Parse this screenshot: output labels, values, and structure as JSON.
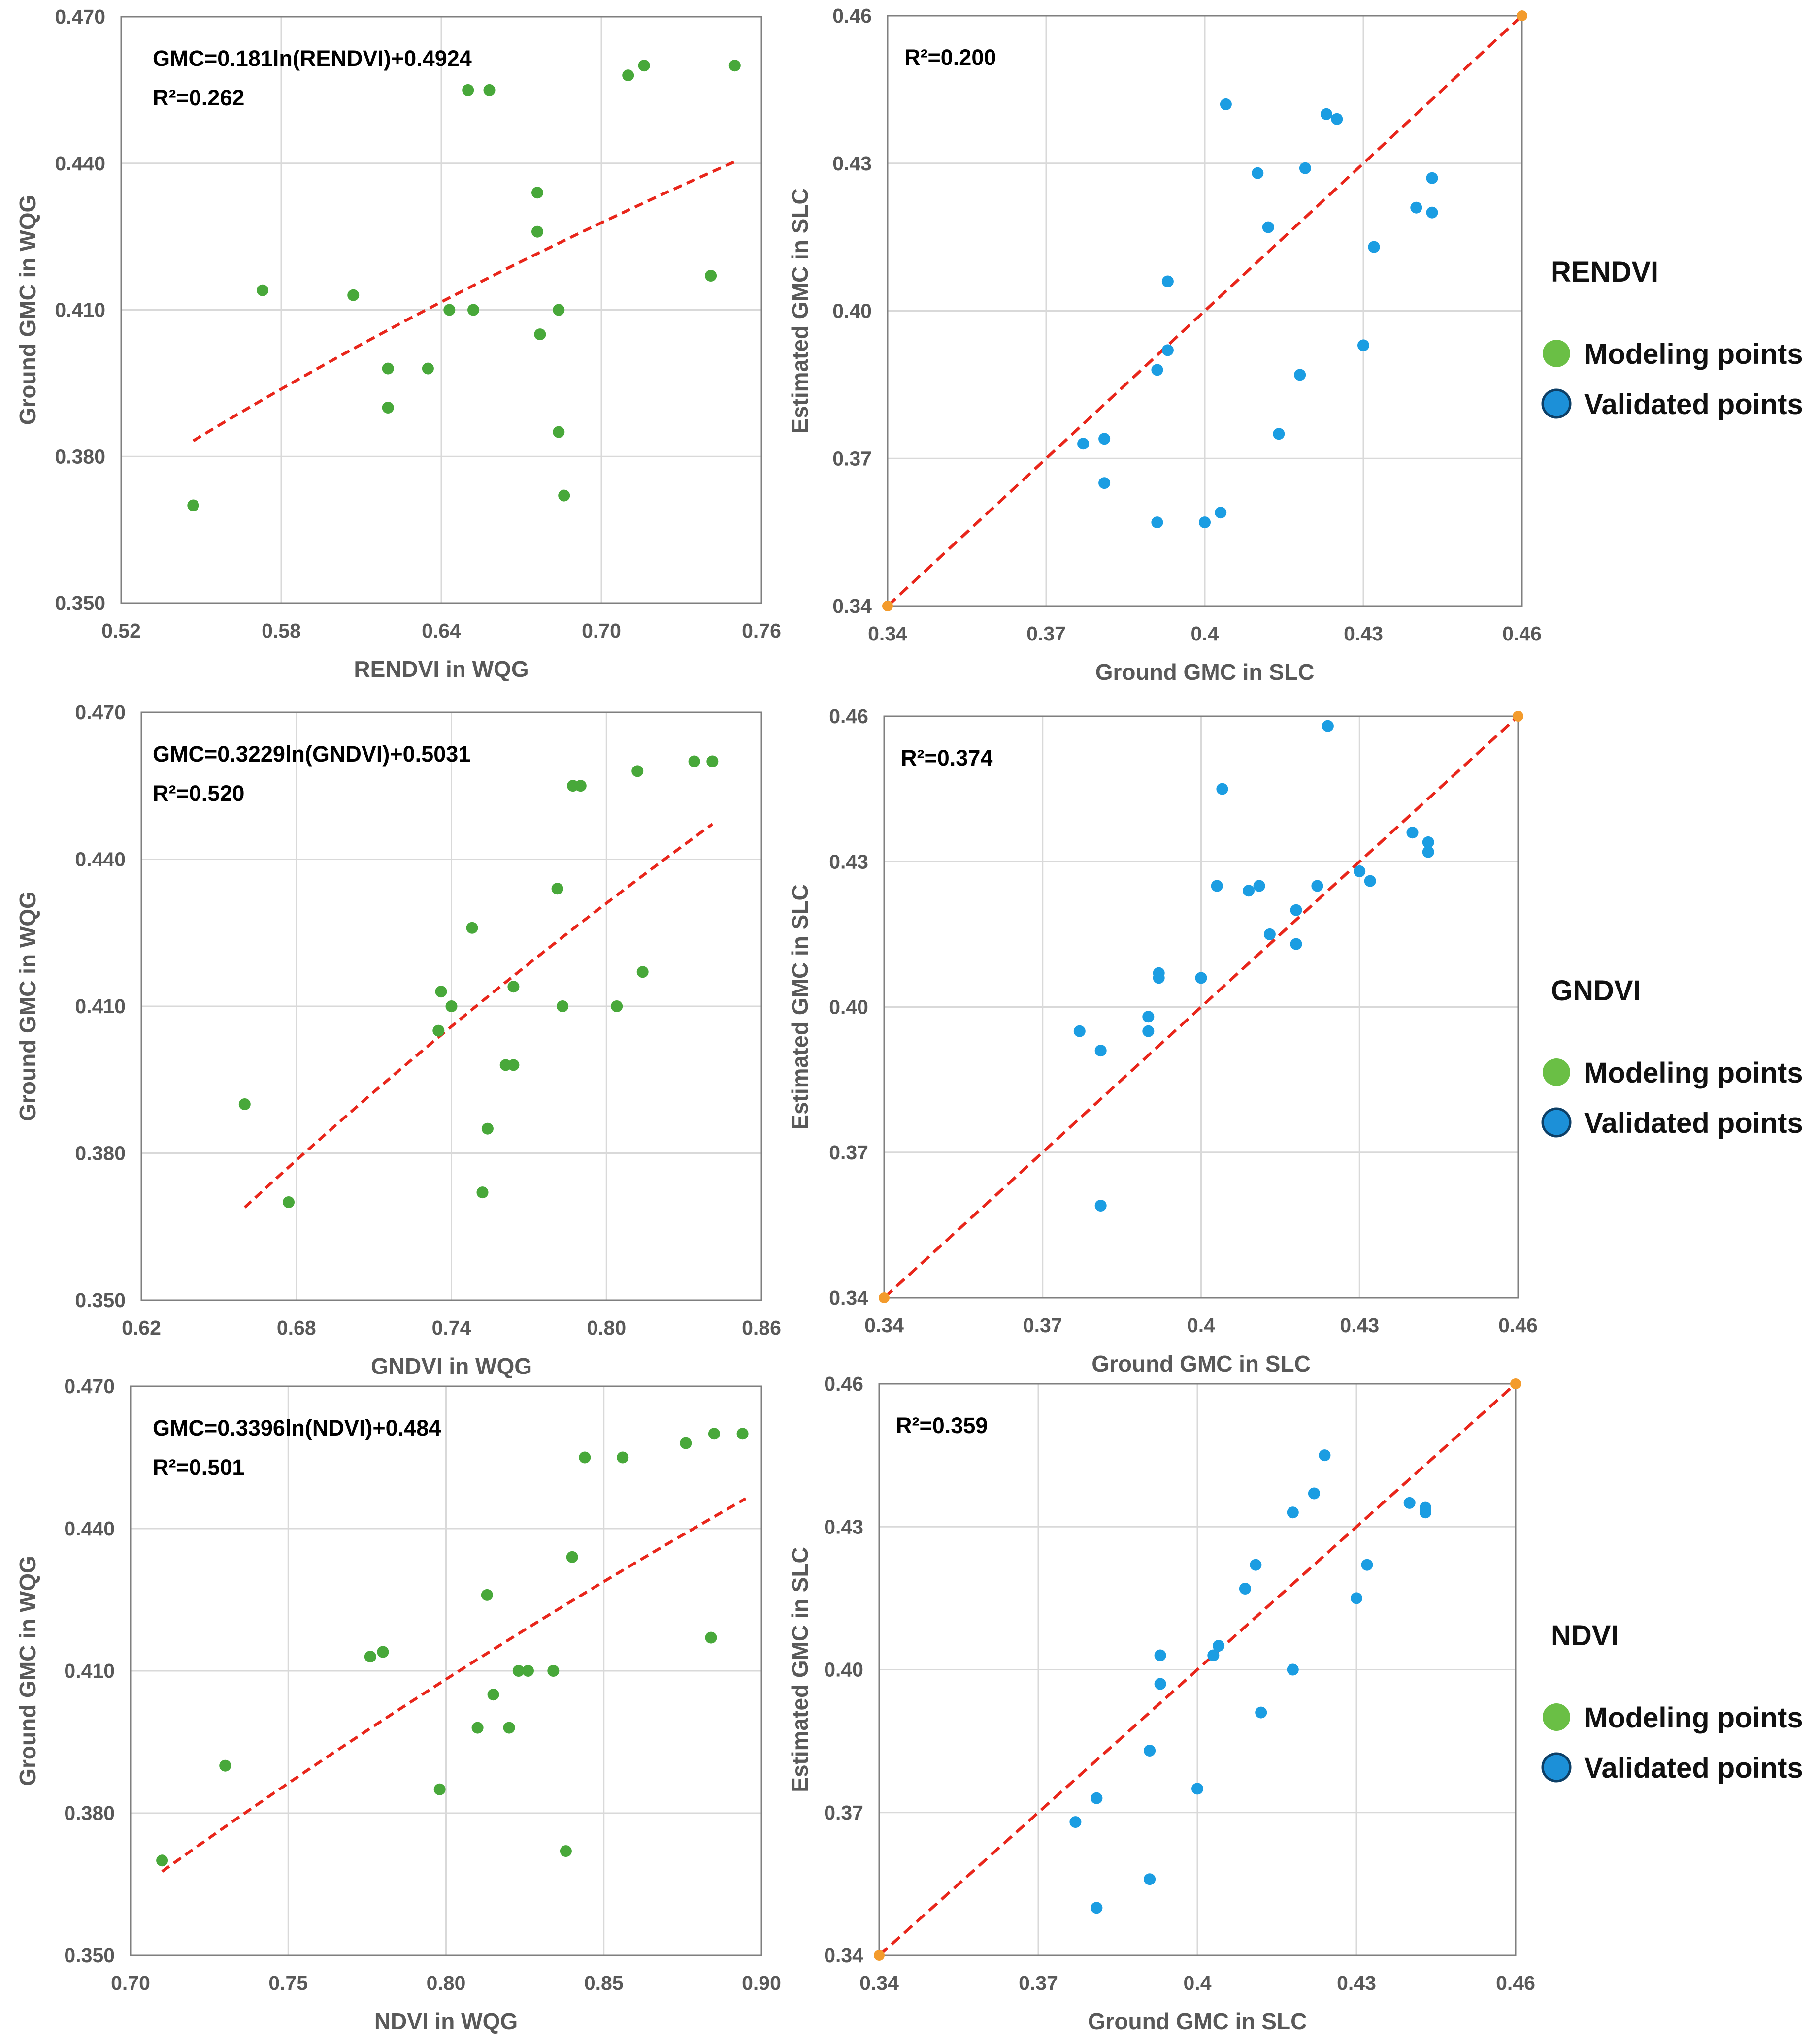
{
  "colors": {
    "modeling": "#6abf45",
    "modeling_fill": "#48a83a",
    "validated": "#1b9de2",
    "validated_legend": "#1c90d8",
    "fit_line": "#e8261b",
    "endpoint": "#f39b2c",
    "grid": "#d9d9d9",
    "frame": "#7f7f7f"
  },
  "legend": {
    "modeling_label": "Modeling points",
    "validated_label": "Validated points",
    "modeling_icon": "green-circle-icon",
    "validated_icon": "blue-circle-icon"
  },
  "chart_data": [
    {
      "type": "scatter",
      "row": 0,
      "panel": "model",
      "xlabel": "RENDVI in WQG",
      "ylabel": "Ground GMC in WQG",
      "xlim": [
        0.52,
        0.76
      ],
      "ylim": [
        0.35,
        0.47
      ],
      "xticks": [
        "0.52",
        "0.58",
        "0.64",
        "0.70",
        "0.76"
      ],
      "yticks": [
        "0.350",
        "0.380",
        "0.410",
        "0.440",
        "0.470"
      ],
      "annotations": [
        "GMC=0.181ln(RENDVI)+0.4924",
        "R²=0.262"
      ],
      "fit": {
        "form": "log",
        "a": 0.181,
        "b": 0.4924,
        "x_range": [
          0.547,
          0.75
        ]
      },
      "points": [
        [
          0.547,
          0.37
        ],
        [
          0.573,
          0.414
        ],
        [
          0.607,
          0.413
        ],
        [
          0.62,
          0.398
        ],
        [
          0.62,
          0.39
        ],
        [
          0.635,
          0.398
        ],
        [
          0.643,
          0.41
        ],
        [
          0.65,
          0.455
        ],
        [
          0.652,
          0.41
        ],
        [
          0.658,
          0.455
        ],
        [
          0.676,
          0.434
        ],
        [
          0.676,
          0.426
        ],
        [
          0.677,
          0.405
        ],
        [
          0.684,
          0.41
        ],
        [
          0.684,
          0.385
        ],
        [
          0.686,
          0.372
        ],
        [
          0.71,
          0.458
        ],
        [
          0.716,
          0.46
        ],
        [
          0.741,
          0.417
        ],
        [
          0.75,
          0.46
        ]
      ]
    },
    {
      "type": "scatter",
      "row": 0,
      "panel": "validation",
      "xlabel": "Ground GMC in SLC",
      "ylabel": "Estimated GMC in SLC",
      "xlim": [
        0.34,
        0.46
      ],
      "ylim": [
        0.34,
        0.46
      ],
      "xticks": [
        "0.34",
        "0.37",
        "0.4",
        "0.43",
        "0.46"
      ],
      "yticks": [
        "0.34",
        "0.37",
        "0.40",
        "0.43",
        "0.46"
      ],
      "annotations": [
        "R²=0.200"
      ],
      "legend_title": "RENDVI",
      "points": [
        [
          0.377,
          0.373
        ],
        [
          0.381,
          0.374
        ],
        [
          0.381,
          0.365
        ],
        [
          0.391,
          0.388
        ],
        [
          0.391,
          0.357
        ],
        [
          0.393,
          0.406
        ],
        [
          0.393,
          0.392
        ],
        [
          0.4,
          0.357
        ],
        [
          0.403,
          0.359
        ],
        [
          0.404,
          0.442
        ],
        [
          0.41,
          0.428
        ],
        [
          0.412,
          0.417
        ],
        [
          0.414,
          0.375
        ],
        [
          0.418,
          0.387
        ],
        [
          0.419,
          0.429
        ],
        [
          0.423,
          0.44
        ],
        [
          0.425,
          0.439
        ],
        [
          0.43,
          0.393
        ],
        [
          0.432,
          0.413
        ],
        [
          0.44,
          0.421
        ],
        [
          0.443,
          0.427
        ],
        [
          0.443,
          0.42
        ]
      ]
    },
    {
      "type": "scatter",
      "row": 1,
      "panel": "model",
      "xlabel": "GNDVI in WQG",
      "ylabel": "Ground GMC in WQG",
      "xlim": [
        0.62,
        0.86
      ],
      "ylim": [
        0.35,
        0.47
      ],
      "xticks": [
        "0.62",
        "0.68",
        "0.74",
        "0.80",
        "0.86"
      ],
      "yticks": [
        "0.350",
        "0.380",
        "0.410",
        "0.440",
        "0.470"
      ],
      "annotations": [
        "GMC=0.3229ln(GNDVI)+0.5031",
        "R²=0.520"
      ],
      "fit": {
        "form": "log",
        "a": 0.3229,
        "b": 0.5031,
        "x_range": [
          0.66,
          0.841
        ]
      },
      "points": [
        [
          0.66,
          0.39
        ],
        [
          0.677,
          0.37
        ],
        [
          0.735,
          0.405
        ],
        [
          0.736,
          0.413
        ],
        [
          0.74,
          0.41
        ],
        [
          0.748,
          0.426
        ],
        [
          0.752,
          0.372
        ],
        [
          0.754,
          0.385
        ],
        [
          0.761,
          0.398
        ],
        [
          0.764,
          0.398
        ],
        [
          0.764,
          0.414
        ],
        [
          0.781,
          0.434
        ],
        [
          0.783,
          0.41
        ],
        [
          0.787,
          0.455
        ],
        [
          0.79,
          0.455
        ],
        [
          0.804,
          0.41
        ],
        [
          0.812,
          0.458
        ],
        [
          0.814,
          0.417
        ],
        [
          0.834,
          0.46
        ],
        [
          0.841,
          0.46
        ]
      ]
    },
    {
      "type": "scatter",
      "row": 1,
      "panel": "validation",
      "xlabel": "Ground GMC in SLC",
      "ylabel": "Estimated GMC in SLC",
      "xlim": [
        0.34,
        0.46
      ],
      "ylim": [
        0.34,
        0.46
      ],
      "xticks": [
        "0.34",
        "0.37",
        "0.4",
        "0.43",
        "0.46"
      ],
      "yticks": [
        "0.34",
        "0.37",
        "0.40",
        "0.43",
        "0.46"
      ],
      "annotations": [
        "R²=0.374"
      ],
      "legend_title": "GNDVI",
      "points": [
        [
          0.377,
          0.395
        ],
        [
          0.381,
          0.391
        ],
        [
          0.381,
          0.359
        ],
        [
          0.39,
          0.398
        ],
        [
          0.39,
          0.395
        ],
        [
          0.392,
          0.407
        ],
        [
          0.392,
          0.406
        ],
        [
          0.4,
          0.406
        ],
        [
          0.403,
          0.425
        ],
        [
          0.404,
          0.445
        ],
        [
          0.409,
          0.424
        ],
        [
          0.411,
          0.425
        ],
        [
          0.413,
          0.415
        ],
        [
          0.418,
          0.42
        ],
        [
          0.418,
          0.413
        ],
        [
          0.422,
          0.425
        ],
        [
          0.424,
          0.458
        ],
        [
          0.43,
          0.428
        ],
        [
          0.432,
          0.426
        ],
        [
          0.44,
          0.436
        ],
        [
          0.443,
          0.434
        ],
        [
          0.443,
          0.432
        ]
      ]
    },
    {
      "type": "scatter",
      "row": 2,
      "panel": "model",
      "xlabel": "NDVI in WQG",
      "ylabel": "Ground GMC in WQG",
      "xlim": [
        0.7,
        0.9
      ],
      "ylim": [
        0.35,
        0.47
      ],
      "xticks": [
        "0.70",
        "0.75",
        "0.80",
        "0.85",
        "0.90"
      ],
      "yticks": [
        "0.350",
        "0.380",
        "0.410",
        "0.440",
        "0.470"
      ],
      "annotations": [
        "GMC=0.3396ln(NDVI)+0.484",
        "R²=0.501"
      ],
      "fit": {
        "form": "log",
        "a": 0.3396,
        "b": 0.484,
        "x_range": [
          0.71,
          0.895
        ]
      },
      "points": [
        [
          0.71,
          0.37
        ],
        [
          0.73,
          0.39
        ],
        [
          0.776,
          0.413
        ],
        [
          0.78,
          0.414
        ],
        [
          0.798,
          0.385
        ],
        [
          0.81,
          0.398
        ],
        [
          0.813,
          0.426
        ],
        [
          0.815,
          0.405
        ],
        [
          0.82,
          0.398
        ],
        [
          0.823,
          0.41
        ],
        [
          0.826,
          0.41
        ],
        [
          0.834,
          0.41
        ],
        [
          0.838,
          0.372
        ],
        [
          0.84,
          0.434
        ],
        [
          0.844,
          0.455
        ],
        [
          0.856,
          0.455
        ],
        [
          0.876,
          0.458
        ],
        [
          0.884,
          0.417
        ],
        [
          0.885,
          0.46
        ],
        [
          0.894,
          0.46
        ]
      ]
    },
    {
      "type": "scatter",
      "row": 2,
      "panel": "validation",
      "xlabel": "Ground GMC in SLC",
      "ylabel": "Estimated GMC in SLC",
      "xlim": [
        0.34,
        0.46
      ],
      "ylim": [
        0.34,
        0.46
      ],
      "xticks": [
        "0.34",
        "0.37",
        "0.4",
        "0.43",
        "0.46"
      ],
      "yticks": [
        "0.34",
        "0.37",
        "0.40",
        "0.43",
        "0.46"
      ],
      "annotations": [
        "R²=0.359"
      ],
      "legend_title": "NDVI",
      "points": [
        [
          0.377,
          0.368
        ],
        [
          0.381,
          0.373
        ],
        [
          0.381,
          0.35
        ],
        [
          0.391,
          0.383
        ],
        [
          0.391,
          0.356
        ],
        [
          0.393,
          0.403
        ],
        [
          0.393,
          0.397
        ],
        [
          0.4,
          0.375
        ],
        [
          0.403,
          0.403
        ],
        [
          0.404,
          0.405
        ],
        [
          0.409,
          0.417
        ],
        [
          0.411,
          0.422
        ],
        [
          0.412,
          0.391
        ],
        [
          0.418,
          0.4
        ],
        [
          0.418,
          0.433
        ],
        [
          0.422,
          0.437
        ],
        [
          0.424,
          0.445
        ],
        [
          0.43,
          0.415
        ],
        [
          0.432,
          0.422
        ],
        [
          0.44,
          0.435
        ],
        [
          0.443,
          0.434
        ],
        [
          0.443,
          0.433
        ]
      ]
    }
  ]
}
